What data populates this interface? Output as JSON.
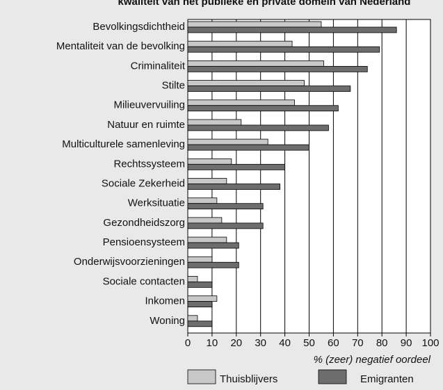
{
  "chart_data": {
    "type": "bar",
    "orientation": "horizontal",
    "title": "kwaliteit van het publieke en private domein van Nederland",
    "categories": [
      "Bevolkingsdichtheid",
      "Mentaliteit van de bevolking",
      "Criminaliteit",
      "Stilte",
      "Milieuvervuiling",
      "Natuur en ruimte",
      "Multiculturele samenleving",
      "Rechtssysteem",
      "Sociale Zekerheid",
      "Werksituatie",
      "Gezondheidszorg",
      "Pensioensysteem",
      "Onderwijsvoorzieningen",
      "Sociale contacten",
      "Inkomen",
      "Woning"
    ],
    "series": [
      {
        "name": "Thuisblijvers",
        "color": "#c8c8c8",
        "values": [
          55,
          43,
          56,
          48,
          44,
          22,
          33,
          18,
          16,
          12,
          14,
          16,
          10,
          4,
          12,
          4
        ]
      },
      {
        "name": "Emigranten",
        "color": "#6d6d6d",
        "values": [
          86,
          79,
          74,
          67,
          62,
          58,
          50,
          40,
          38,
          31,
          31,
          21,
          21,
          10,
          10,
          10
        ]
      }
    ],
    "xlabel": "% (zeer) negatief oordeel",
    "xlim": [
      0,
      100
    ],
    "xticks": [
      0,
      10,
      20,
      30,
      40,
      50,
      60,
      70,
      80,
      90,
      100
    ],
    "grid": true
  }
}
